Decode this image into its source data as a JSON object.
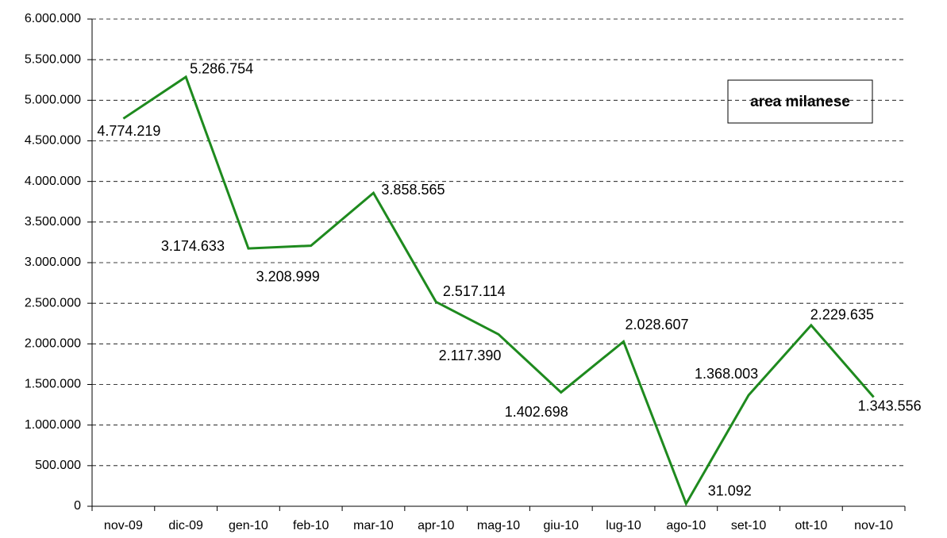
{
  "chart_data": {
    "type": "line",
    "categories": [
      "nov-09",
      "dic-09",
      "gen-10",
      "feb-10",
      "mar-10",
      "apr-10",
      "mag-10",
      "giu-10",
      "lug-10",
      "ago-10",
      "set-10",
      "ott-10",
      "nov-10"
    ],
    "series": [
      {
        "name": "area milanese",
        "color": "#1e8a1e",
        "values": [
          4774219,
          5286754,
          3174633,
          3208999,
          3858565,
          2517114,
          2117390,
          1402698,
          2028607,
          31092,
          1368003,
          2229635,
          1343556
        ],
        "value_labels": [
          "4.774.219",
          "5.286.754",
          "3.174.633",
          "3.208.999",
          "3.858.565",
          "2.517.114",
          "2.117.390",
          "1.402.698",
          "2.028.607",
          "31.092",
          "1.368.003",
          "2.229.635",
          "1.343.556"
        ]
      }
    ],
    "ylim": [
      0,
      6000000
    ],
    "yticks": [
      0,
      {
        "value": 500000,
        "label": "500.000"
      },
      {
        "value": 1000000,
        "label": "1.000.000"
      },
      {
        "value": 1500000,
        "label": "1.500.000"
      },
      {
        "value": 2000000,
        "label": "2.000.000"
      },
      {
        "value": 2500000,
        "label": "2.500.000"
      },
      {
        "value": 3000000,
        "label": "3.000.000"
      },
      {
        "value": 3500000,
        "label": "3.500.000"
      },
      {
        "value": 4000000,
        "label": "4.000.000"
      },
      {
        "value": 4500000,
        "label": "4.500.000"
      },
      {
        "value": 5000000,
        "label": "5.000.000"
      },
      {
        "value": 5500000,
        "label": "5.500.000"
      },
      {
        "value": 6000000,
        "label": "6.000.000"
      }
    ],
    "grid": true,
    "legend": "upper right"
  }
}
